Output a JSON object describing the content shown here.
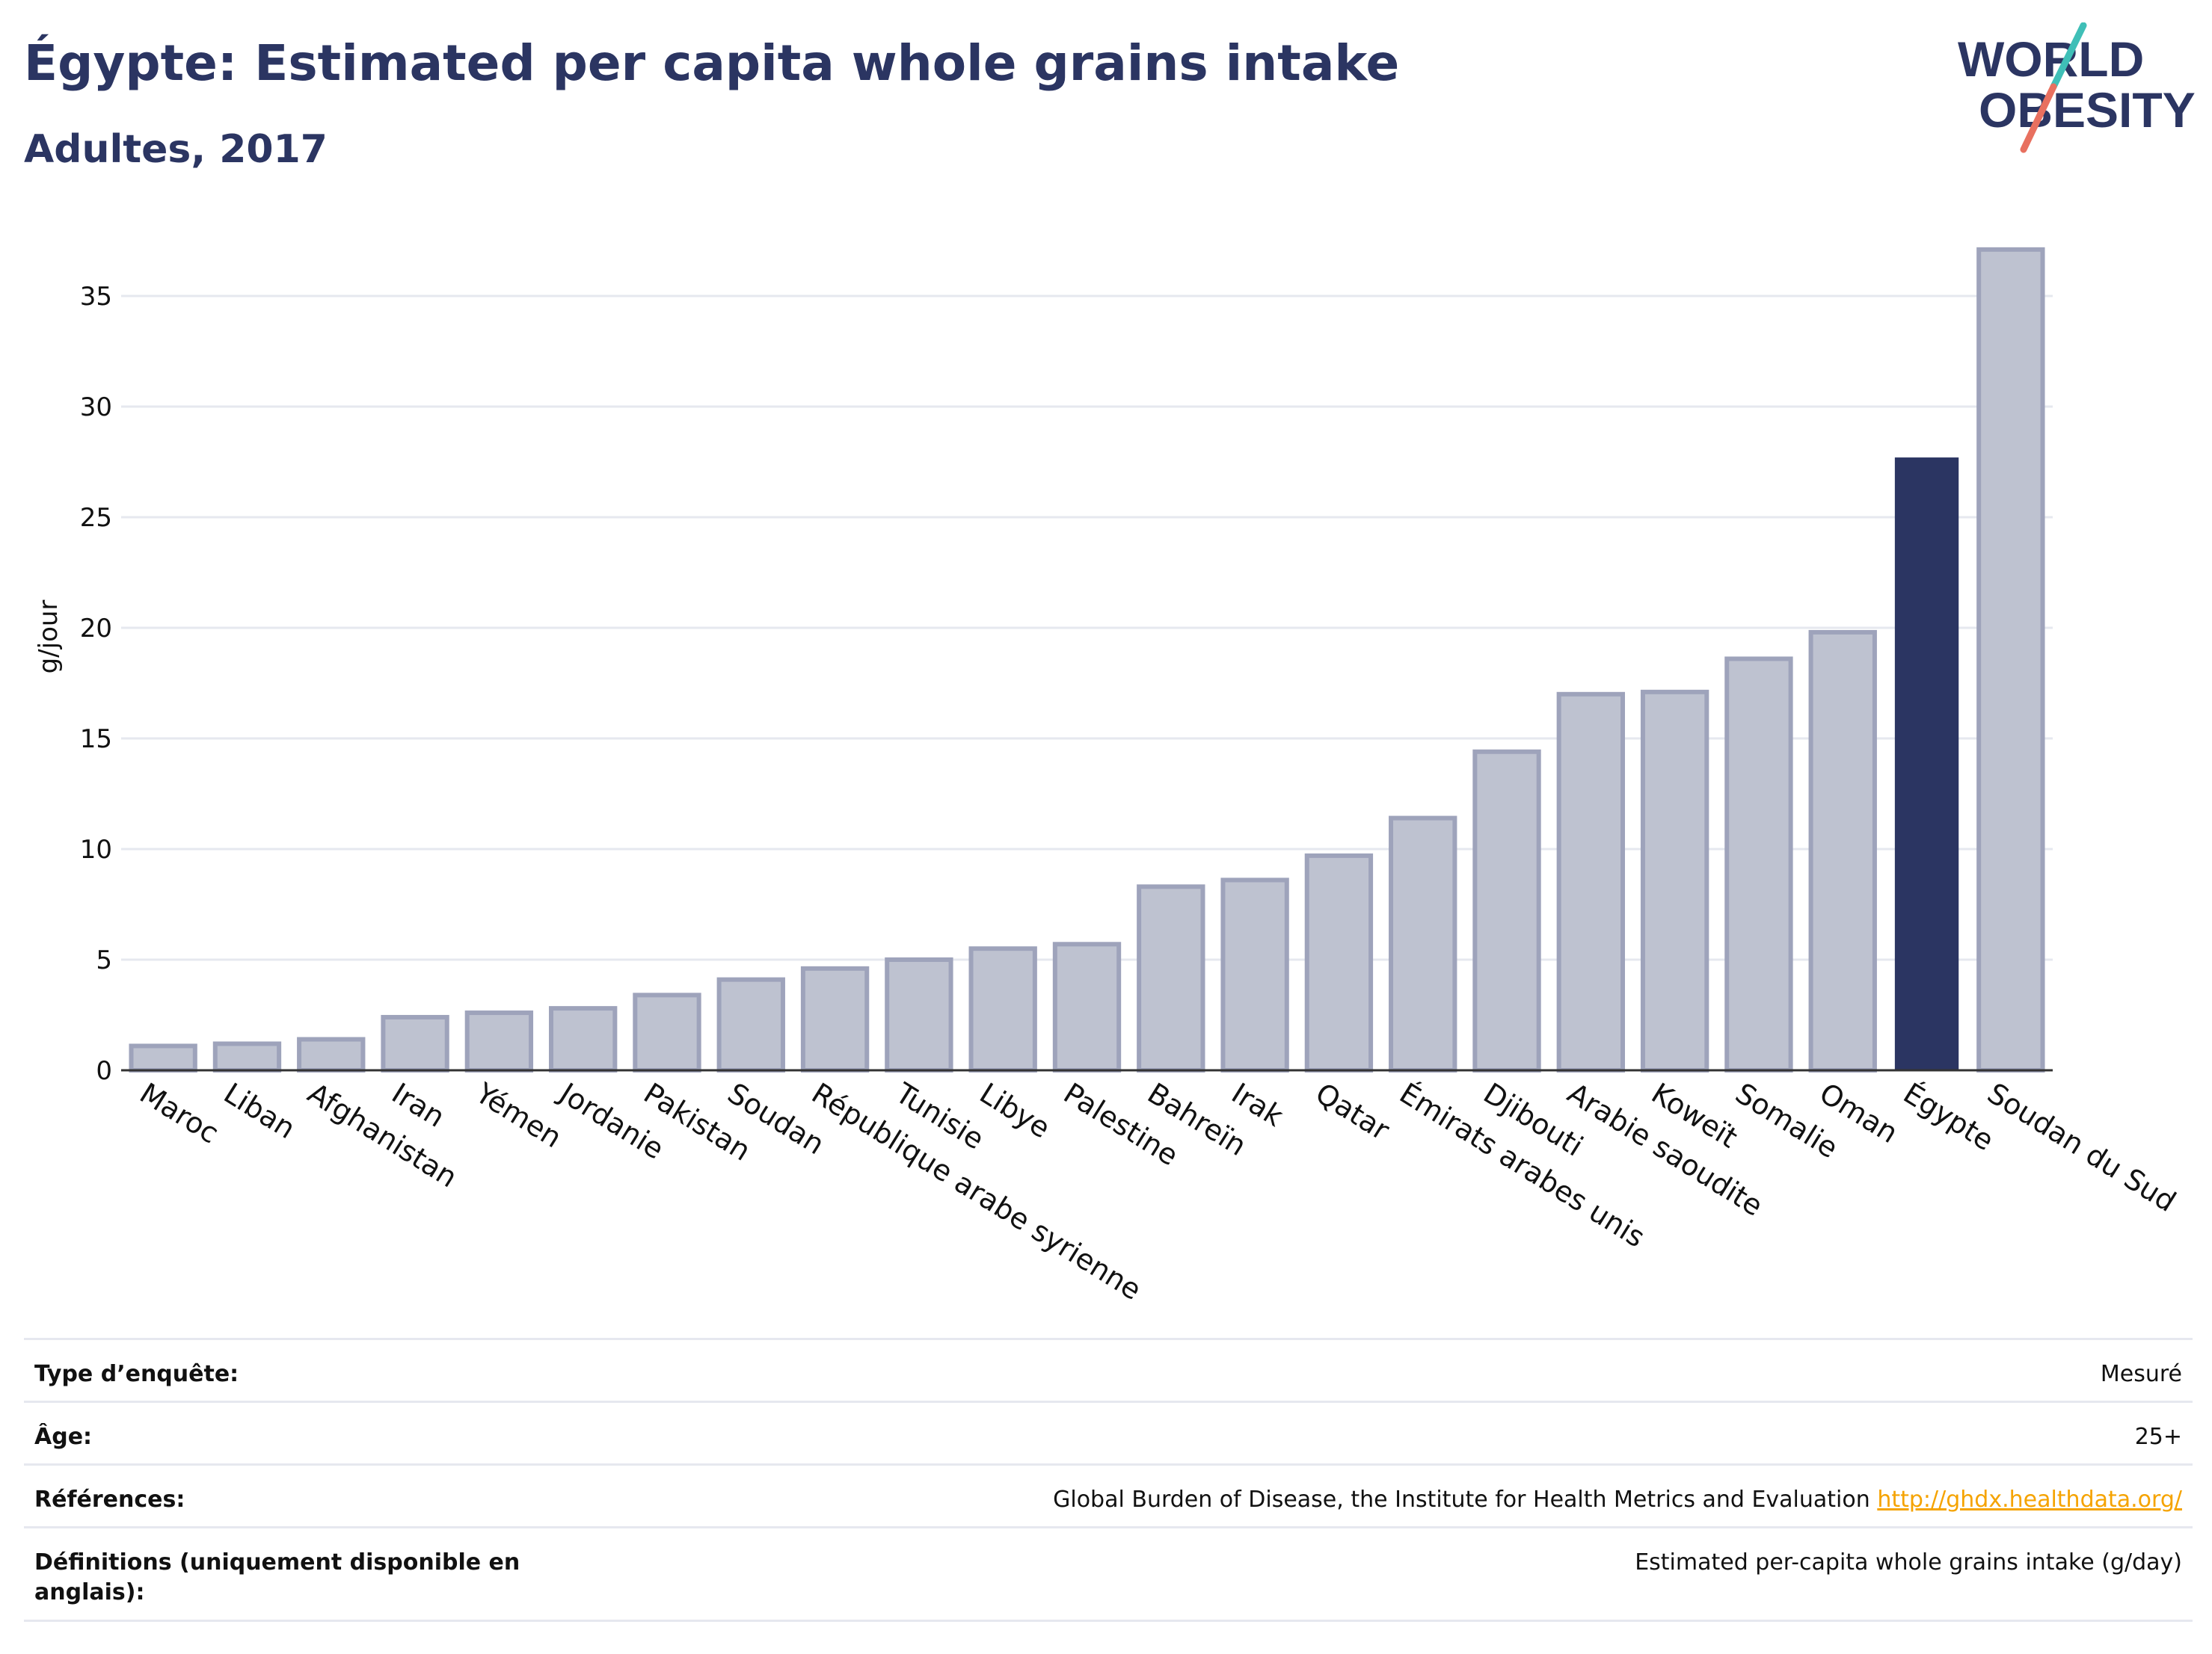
{
  "header": {
    "title": "Égypte: Estimated per capita whole grains intake",
    "subtitle": "Adultes, 2017"
  },
  "logo": {
    "line1": "WORLD",
    "line2": "OBESITY"
  },
  "colors": {
    "highlight": "#2b3562",
    "bar_fill": "#bec2d0",
    "bar_stroke": "#9ea3bb",
    "grid": "#e6e8ef",
    "logo_teal": "#3fbfb7",
    "logo_coral": "#e8705f"
  },
  "chart_data": {
    "type": "bar",
    "ylabel": "g/jour",
    "ylim": [
      0,
      38
    ],
    "yticks": [
      0,
      5,
      10,
      15,
      20,
      25,
      30,
      35
    ],
    "grid": true,
    "highlight": "Égypte",
    "categories": [
      "Maroc",
      "Liban",
      "Afghanistan",
      "Iran",
      "Yémen",
      "Jordanie",
      "Pakistan",
      "Soudan",
      "République arabe syrienne",
      "Tunisie",
      "Libye",
      "Palestine",
      "Bahreïn",
      "Irak",
      "Qatar",
      "Émirats arabes unis",
      "Djibouti",
      "Arabie saoudite",
      "Koweït",
      "Somalie",
      "Oman",
      "Égypte",
      "Soudan du Sud"
    ],
    "values": [
      1.1,
      1.2,
      1.4,
      2.4,
      2.6,
      2.8,
      3.4,
      4.1,
      4.6,
      5.0,
      5.5,
      5.7,
      8.3,
      8.6,
      9.7,
      11.4,
      14.4,
      17.0,
      17.1,
      18.6,
      19.8,
      27.7,
      37.1
    ]
  },
  "meta": {
    "survey_type_label": "Type d’enquête:",
    "survey_type_value": "Mesuré",
    "age_label": "Âge:",
    "age_value": "25+",
    "references_label": "Références:",
    "references_text": "Global Burden of Disease, the Institute for Health Metrics and Evaluation",
    "references_link": "http://ghdx.healthdata.org/",
    "definitions_label": "Définitions (uniquement disponible en anglais):",
    "definitions_value": "Estimated per-capita whole grains intake (g/day)"
  }
}
